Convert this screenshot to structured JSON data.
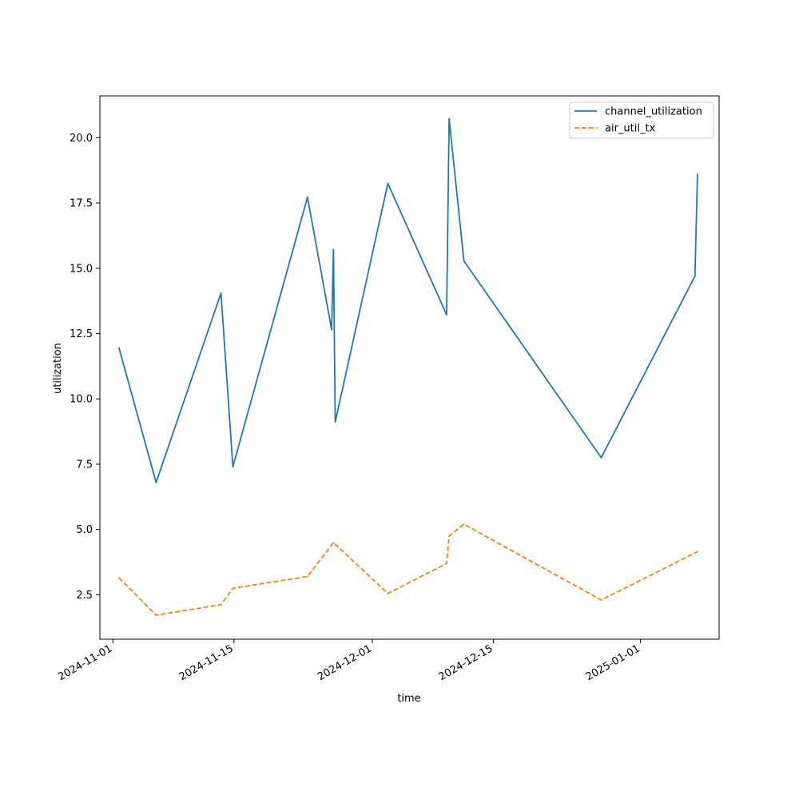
{
  "chart_data": {
    "type": "line",
    "title": "",
    "xlabel": "time",
    "ylabel": "utilization",
    "x_type": "date",
    "xlim": [
      "2024-10-30T12:00",
      "2025-01-10T02:00"
    ],
    "ylim": [
      0.8,
      21.6
    ],
    "x_ticks": [
      "2024-11-01",
      "2024-11-15",
      "2024-12-01",
      "2024-12-15",
      "2025-01-01"
    ],
    "y_ticks": [
      "2.5",
      "5.0",
      "7.5",
      "10.0",
      "12.5",
      "15.0",
      "17.5",
      "20.0"
    ],
    "grid": false,
    "legend_position": "top-right",
    "series": [
      {
        "name": "channel_utilization",
        "color": "#1f77b4",
        "style": "solid",
        "points": [
          [
            "2024-11-01T17:00",
            11.95
          ],
          [
            "2024-11-06T00:00",
            6.8
          ],
          [
            "2024-11-13T12:00",
            14.05
          ],
          [
            "2024-11-14T21:00",
            7.4
          ],
          [
            "2024-11-23T12:00",
            17.72
          ],
          [
            "2024-11-26T07:00",
            12.65
          ],
          [
            "2024-11-26T12:00",
            15.72
          ],
          [
            "2024-11-26T17:00",
            9.12
          ],
          [
            "2024-12-02T19:00",
            18.25
          ],
          [
            "2024-12-09T14:00",
            13.22
          ],
          [
            "2024-12-09T21:00",
            20.72
          ],
          [
            "2024-12-11T14:00",
            15.28
          ],
          [
            "2024-12-27T11:00",
            7.75
          ],
          [
            "2025-01-07T07:00",
            14.7
          ],
          [
            "2025-01-07T14:00",
            18.6
          ]
        ]
      },
      {
        "name": "air_util_tx",
        "color": "#ff7f0e",
        "style": "dashed",
        "points": [
          [
            "2024-11-01T17:00",
            3.15
          ],
          [
            "2024-11-06T00:00",
            1.72
          ],
          [
            "2024-11-13T12:00",
            2.12
          ],
          [
            "2024-11-14T21:00",
            2.75
          ],
          [
            "2024-11-23T12:00",
            3.2
          ],
          [
            "2024-11-26T12:00",
            4.5
          ],
          [
            "2024-12-02T19:00",
            2.55
          ],
          [
            "2024-12-09T14:00",
            3.7
          ],
          [
            "2024-12-09T21:00",
            4.75
          ],
          [
            "2024-12-11T14:00",
            5.2
          ],
          [
            "2024-12-27T11:00",
            2.3
          ],
          [
            "2025-01-07T14:00",
            4.15
          ]
        ]
      }
    ]
  }
}
